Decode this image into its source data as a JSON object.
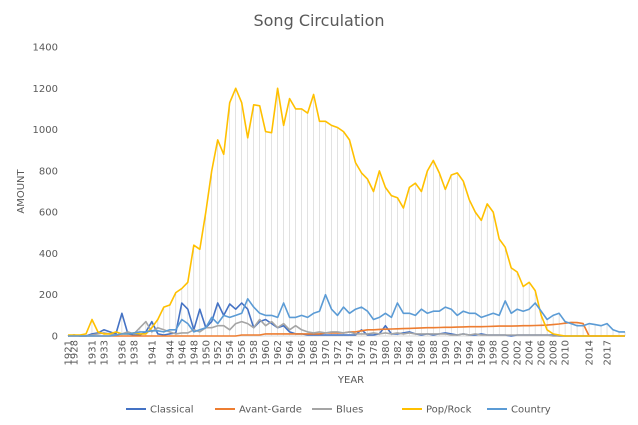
{
  "chart_data": {
    "type": "line",
    "title": "Song Circulation",
    "xlabel": "YEAR",
    "ylabel": "AMOUNT",
    "ylim": [
      0,
      1400
    ],
    "yticks": [
      0,
      200,
      400,
      600,
      800,
      1000,
      1200,
      1400
    ],
    "legend_position": "bottom",
    "grid": false,
    "drop_lines": true,
    "x": [
      1921,
      1928,
      1929,
      1930,
      1931,
      1932,
      1933,
      1934,
      1935,
      1936,
      1937,
      1938,
      1939,
      1940,
      1941,
      1942,
      1943,
      1944,
      1945,
      1946,
      1947,
      1948,
      1949,
      1950,
      1951,
      1952,
      1953,
      1954,
      1955,
      1956,
      1957,
      1958,
      1959,
      1960,
      1961,
      1962,
      1963,
      1964,
      1965,
      1966,
      1967,
      1968,
      1969,
      1970,
      1971,
      1972,
      1973,
      1974,
      1975,
      1976,
      1977,
      1978,
      1979,
      1980,
      1981,
      1982,
      1983,
      1984,
      1985,
      1986,
      1987,
      1988,
      1989,
      1990,
      1991,
      1992,
      1993,
      1994,
      1995,
      1996,
      1997,
      1998,
      1999,
      2000,
      2001,
      2002,
      2003,
      2004,
      2005,
      2006,
      2007,
      2008,
      2009,
      2010,
      2011,
      2012,
      2013,
      2014,
      2015,
      2016,
      2017,
      2018,
      2019,
      2020
    ],
    "x_tick_labels": [
      "1921",
      "1928",
      "1931",
      "1933",
      "1936",
      "1938",
      "1941",
      "1944",
      "1946",
      "1948",
      "1950",
      "1952",
      "1954",
      "1956",
      "1958",
      "1960",
      "1962",
      "1964",
      "1966",
      "1968",
      "1970",
      "1972",
      "1974",
      "1976",
      "1978",
      "1980",
      "1982",
      "1984",
      "1986",
      "1988",
      "1990",
      "1992",
      "1994",
      "1996",
      "1998",
      "2000",
      "2002",
      "2004",
      "2006",
      "2008",
      "2010",
      "2014",
      "2017"
    ],
    "series": [
      {
        "name": "Classical",
        "color": "#4472C4",
        "values": [
          0,
          5,
          0,
          0,
          10,
          15,
          30,
          20,
          10,
          110,
          10,
          5,
          5,
          20,
          70,
          10,
          5,
          10,
          15,
          160,
          130,
          30,
          130,
          40,
          70,
          160,
          100,
          155,
          130,
          160,
          130,
          40,
          70,
          80,
          60,
          40,
          50,
          20,
          10,
          10,
          5,
          5,
          5,
          5,
          5,
          5,
          5,
          5,
          5,
          30,
          5,
          5,
          10,
          50,
          10,
          10,
          15,
          20,
          10,
          5,
          10,
          5,
          10,
          15,
          10,
          5,
          10,
          5,
          5,
          10,
          5,
          5,
          5,
          5,
          0,
          5,
          5,
          5,
          5,
          5,
          5,
          5,
          0,
          0,
          0,
          0,
          0,
          0,
          0,
          0,
          0,
          0,
          0,
          0
        ]
      },
      {
        "name": "Avant-Garde",
        "color": "#ED7D31",
        "values": [
          0,
          0,
          0,
          0,
          0,
          0,
          0,
          0,
          0,
          0,
          0,
          0,
          0,
          0,
          0,
          0,
          0,
          0,
          0,
          0,
          0,
          0,
          0,
          0,
          0,
          0,
          0,
          0,
          0,
          5,
          5,
          5,
          5,
          10,
          10,
          10,
          10,
          10,
          10,
          10,
          10,
          10,
          10,
          15,
          15,
          15,
          15,
          20,
          20,
          25,
          30,
          30,
          32,
          33,
          34,
          35,
          36,
          37,
          38,
          39,
          40,
          40,
          41,
          42,
          42,
          43,
          44,
          45,
          45,
          45,
          46,
          47,
          48,
          48,
          48,
          49,
          50,
          50,
          51,
          52,
          53,
          55,
          58,
          62,
          66,
          65,
          60,
          0,
          0,
          0,
          0,
          0,
          0,
          0
        ]
      },
      {
        "name": "Blues",
        "color": "#A5A5A5",
        "values": [
          0,
          5,
          0,
          0,
          5,
          10,
          15,
          10,
          5,
          10,
          20,
          10,
          40,
          70,
          20,
          40,
          30,
          20,
          10,
          15,
          15,
          30,
          20,
          40,
          40,
          50,
          50,
          30,
          60,
          70,
          60,
          40,
          80,
          50,
          70,
          40,
          60,
          30,
          50,
          30,
          20,
          15,
          20,
          15,
          20,
          20,
          15,
          20,
          10,
          10,
          10,
          15,
          10,
          15,
          10,
          15,
          10,
          15,
          10,
          10,
          10,
          10,
          10,
          10,
          5,
          5,
          10,
          5,
          10,
          5,
          5,
          5,
          5,
          5,
          5,
          5,
          5,
          5,
          5,
          5,
          5,
          0,
          0,
          0,
          0,
          0,
          0,
          0,
          0,
          0,
          0,
          0,
          0,
          0
        ]
      },
      {
        "name": "Pop/Rock",
        "color": "#FFC000",
        "values": [
          5,
          5,
          5,
          10,
          80,
          20,
          10,
          10,
          20,
          10,
          10,
          15,
          10,
          10,
          40,
          80,
          140,
          150,
          210,
          230,
          260,
          440,
          420,
          600,
          800,
          950,
          880,
          1130,
          1200,
          1130,
          960,
          1120,
          1115,
          990,
          985,
          1200,
          1020,
          1150,
          1100,
          1100,
          1080,
          1170,
          1040,
          1040,
          1020,
          1010,
          990,
          950,
          840,
          790,
          760,
          700,
          800,
          720,
          680,
          670,
          620,
          720,
          740,
          700,
          800,
          850,
          790,
          710,
          780,
          790,
          750,
          660,
          600,
          560,
          640,
          600,
          470,
          430,
          330,
          310,
          240,
          260,
          220,
          100,
          30,
          10,
          5,
          0,
          0,
          0,
          0,
          0,
          0,
          0,
          0,
          0,
          0,
          0
        ]
      },
      {
        "name": "Country",
        "color": "#5B9BD5",
        "values": [
          0,
          0,
          0,
          0,
          0,
          0,
          0,
          0,
          5,
          10,
          10,
          15,
          20,
          20,
          25,
          25,
          20,
          30,
          30,
          80,
          60,
          20,
          30,
          40,
          90,
          60,
          100,
          90,
          100,
          110,
          180,
          140,
          110,
          100,
          100,
          90,
          160,
          90,
          90,
          100,
          90,
          110,
          120,
          200,
          130,
          100,
          140,
          110,
          130,
          140,
          120,
          80,
          90,
          110,
          90,
          160,
          110,
          110,
          100,
          130,
          110,
          120,
          120,
          140,
          130,
          100,
          120,
          110,
          110,
          90,
          100,
          110,
          100,
          170,
          110,
          130,
          120,
          130,
          160,
          120,
          80,
          100,
          110,
          70,
          60,
          50,
          50,
          60,
          55,
          50,
          60,
          30,
          20,
          20
        ]
      }
    ]
  }
}
